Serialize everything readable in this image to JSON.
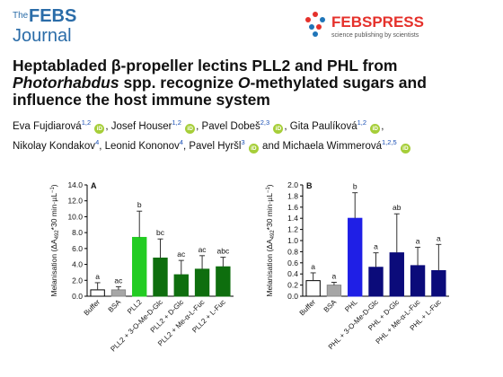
{
  "header": {
    "journal_the": "The",
    "journal_febs": "FEBS",
    "journal_name": "Journal",
    "press_logo_text": "FEBSPRESS",
    "press_tagline": "science publishing by scientists"
  },
  "article": {
    "title_line1": "Heptabladed β-propeller lectins PLL2 and PHL from",
    "title_line2_italic": "Photorhabdus",
    "title_line2_rest": " spp. recognize ",
    "title_line2_italic2": "O",
    "title_line2_end": "-methylated sugars and",
    "title_line3": "influence the host immune system",
    "orcid_label": "iD",
    "authors_line1": [
      {
        "name": "Eva Fujdiarová",
        "aff": "1,2",
        "orcid": true,
        "sep": ", "
      },
      {
        "name": "Josef Houser",
        "aff": "1,2",
        "orcid": true,
        "sep": ", "
      },
      {
        "name": "Pavel Dobeš",
        "aff": "2,3",
        "orcid": true,
        "sep": ", "
      },
      {
        "name": "Gita Paulíková",
        "aff": "1,2",
        "orcid": true,
        "sep": ","
      }
    ],
    "authors_line2": [
      {
        "name": "Nikolay Kondakov",
        "aff": "4",
        "orcid": false,
        "sep": ", "
      },
      {
        "name": "Leonid Kononov",
        "aff": "4",
        "orcid": false,
        "sep": ", "
      },
      {
        "name": "Pavel Hyršl",
        "aff": "3",
        "orcid": true,
        "sep": " and "
      },
      {
        "name": "Michaela Wimmerová",
        "aff": "1,2,5",
        "orcid": true,
        "sep": ""
      }
    ]
  },
  "chart_data": [
    {
      "type": "bar",
      "panel": "A",
      "ylabel_main": "Melanisation (ΔA",
      "ylabel_sub": "492",
      "ylabel_rest": "*30 min·µL",
      "ylabel_sup": "−1",
      "ylabel_end": ")",
      "ylim": [
        0,
        14
      ],
      "yticks": [
        "0.0",
        "2.0",
        "4.0",
        "6.0",
        "8.0",
        "10.0",
        "12.0",
        "14.0"
      ],
      "categories": [
        "Buffer",
        "BSA",
        "PLL2",
        "PLL2 + 3-O-Me-D-Glc",
        "PLL2 + D-Glc",
        "PLL2 + Me-α-L-Fuc",
        "PLL2 + L-Fuc"
      ],
      "values": [
        0.8,
        0.8,
        7.4,
        4.8,
        2.7,
        3.4,
        3.7
      ],
      "errors": [
        0.9,
        0.4,
        3.3,
        2.4,
        1.8,
        1.7,
        1.2
      ],
      "letters": [
        "a",
        "ac",
        "b",
        "bc",
        "ac",
        "ac",
        "abc"
      ],
      "colors": [
        "#ffffff",
        "#a6a6a6",
        "#22cc22",
        "#0e6e0e",
        "#0e6e0e",
        "#0e6e0e",
        "#0e6e0e"
      ],
      "strokes": [
        "#000000",
        "#8a8a8a",
        "#22cc22",
        "#0e6e0e",
        "#0e6e0e",
        "#0e6e0e",
        "#0e6e0e"
      ],
      "grid": false
    },
    {
      "type": "bar",
      "panel": "B",
      "ylabel_main": "Melanisation (ΔA",
      "ylabel_sub": "492",
      "ylabel_rest": "*30 min·µL",
      "ylabel_sup": "−1",
      "ylabel_end": ")",
      "ylim": [
        0,
        2.0
      ],
      "yticks": [
        "0.0",
        "0.2",
        "0.4",
        "0.6",
        "0.8",
        "1.0",
        "1.2",
        "1.4",
        "1.6",
        "1.8",
        "2.0"
      ],
      "categories": [
        "Buffer",
        "BSA",
        "PHL",
        "PHL + 3-O-Me-D-Glc",
        "PHL + D-Glc",
        "PHL + Me-α-L-Fuc",
        "PHL + L-Fuc"
      ],
      "values": [
        0.28,
        0.2,
        1.4,
        0.52,
        0.78,
        0.55,
        0.46
      ],
      "errors": [
        0.14,
        0.05,
        0.46,
        0.26,
        0.7,
        0.33,
        0.47
      ],
      "letters": [
        "a",
        "a",
        "b",
        "a",
        "ab",
        "a",
        "a"
      ],
      "colors": [
        "#ffffff",
        "#a6a6a6",
        "#1f1fe6",
        "#0b0b7a",
        "#0b0b7a",
        "#0b0b7a",
        "#0b0b7a"
      ],
      "strokes": [
        "#000000",
        "#8a8a8a",
        "#1f1fe6",
        "#0b0b7a",
        "#0b0b7a",
        "#0b0b7a",
        "#0b0b7a"
      ],
      "grid": false
    }
  ]
}
